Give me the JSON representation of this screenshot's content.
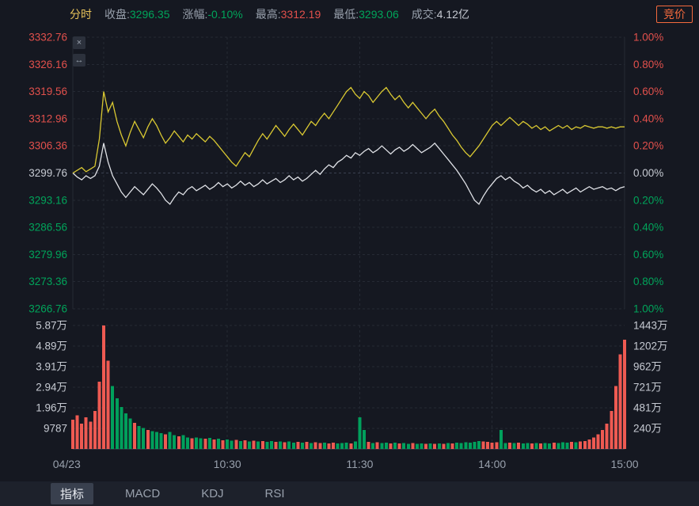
{
  "header": {
    "mode_label": "分时",
    "stats": [
      {
        "label": "收盘:",
        "value": "3296.35",
        "color": "green"
      },
      {
        "label": "涨幅:",
        "value": "-0.10%",
        "color": "green"
      },
      {
        "label": "最高:",
        "value": "3312.19",
        "color": "red"
      },
      {
        "label": "最低:",
        "value": "3293.06",
        "color": "green"
      },
      {
        "label": "成交:",
        "value": "4.12亿",
        "color": "white"
      }
    ],
    "auction_button": "竞价"
  },
  "chart_controls": {
    "close_icon": "×",
    "expand_icon": "↔"
  },
  "colors": {
    "background": "#151821",
    "red": "#e2504c",
    "green": "#00a45a",
    "neutral_text": "#c6cad2",
    "muted_text": "#98a0ac",
    "accent_orange": "#f56a3d",
    "accent_gold": "#e8c35a",
    "grid": "#252a34",
    "grid_strong": "#3a4150",
    "bar_red": "#ee5a52",
    "bar_green": "#00a05c",
    "white_line": "#dfe1e6",
    "yellow_line": "#d9c832"
  },
  "chart_data": {
    "type": "line",
    "title": "分时",
    "prev_close": 3299.76,
    "close": 3296.35,
    "high": 3312.19,
    "low": 3293.06,
    "turnover": "4.12亿",
    "pct_range": [
      -1.0,
      1.0
    ],
    "total_minutes": 250,
    "minutes_per_point": 2,
    "open_line_minute": 14,
    "price_axis_left": [
      {
        "t": "3332.76",
        "c": "red"
      },
      {
        "t": "3326.16",
        "c": "red"
      },
      {
        "t": "3319.56",
        "c": "red"
      },
      {
        "t": "3312.96",
        "c": "red"
      },
      {
        "t": "3306.36",
        "c": "red"
      },
      {
        "t": "3299.76",
        "c": "white"
      },
      {
        "t": "3293.16",
        "c": "green"
      },
      {
        "t": "3286.56",
        "c": "green"
      },
      {
        "t": "3279.96",
        "c": "green"
      },
      {
        "t": "3273.36",
        "c": "green"
      },
      {
        "t": "3266.76",
        "c": "green"
      }
    ],
    "pct_axis_right": [
      {
        "t": "1.00%",
        "c": "red"
      },
      {
        "t": "0.80%",
        "c": "red"
      },
      {
        "t": "0.60%",
        "c": "red"
      },
      {
        "t": "0.40%",
        "c": "red"
      },
      {
        "t": "0.20%",
        "c": "red"
      },
      {
        "t": "0.00%",
        "c": "white"
      },
      {
        "t": "0.20%",
        "c": "green"
      },
      {
        "t": "0.40%",
        "c": "green"
      },
      {
        "t": "0.60%",
        "c": "green"
      },
      {
        "t": "0.80%",
        "c": "green"
      },
      {
        "t": "1.00%",
        "c": "green"
      }
    ],
    "vol_axis_left": [
      "5.87万",
      "4.89万",
      "3.91万",
      "2.94万",
      "1.96万",
      "9787"
    ],
    "vol_axis_right": [
      "1443万",
      "1202万",
      "962万",
      "721万",
      "481万",
      "240万"
    ],
    "vol_grid_step": 9787,
    "x_labels": [
      {
        "t": "04/23",
        "min": 0
      },
      {
        "t": "10:30",
        "min": 70
      },
      {
        "t": "11:30",
        "min": 130
      },
      {
        "t": "14:00",
        "min": 190
      },
      {
        "t": "15:00",
        "min": 250
      }
    ],
    "series": [
      {
        "name": "price",
        "color": "#dfe1e6",
        "pct": [
          0,
          -0.03,
          -0.05,
          -0.02,
          -0.04,
          -0.02,
          0.05,
          0.22,
          0.08,
          -0.02,
          -0.08,
          -0.14,
          -0.18,
          -0.14,
          -0.1,
          -0.13,
          -0.16,
          -0.12,
          -0.08,
          -0.11,
          -0.15,
          -0.2,
          -0.23,
          -0.18,
          -0.14,
          -0.16,
          -0.12,
          -0.1,
          -0.13,
          -0.11,
          -0.09,
          -0.12,
          -0.1,
          -0.07,
          -0.1,
          -0.08,
          -0.11,
          -0.09,
          -0.06,
          -0.09,
          -0.07,
          -0.1,
          -0.08,
          -0.05,
          -0.08,
          -0.06,
          -0.04,
          -0.07,
          -0.05,
          -0.02,
          -0.05,
          -0.03,
          -0.06,
          -0.04,
          -0.01,
          0.02,
          -0.01,
          0.03,
          0.06,
          0.04,
          0.08,
          0.1,
          0.13,
          0.11,
          0.15,
          0.13,
          0.16,
          0.18,
          0.15,
          0.17,
          0.2,
          0.17,
          0.14,
          0.17,
          0.19,
          0.16,
          0.18,
          0.21,
          0.18,
          0.15,
          0.17,
          0.19,
          0.22,
          0.18,
          0.14,
          0.1,
          0.06,
          0.02,
          -0.03,
          -0.08,
          -0.14,
          -0.2,
          -0.23,
          -0.17,
          -0.12,
          -0.08,
          -0.04,
          -0.02,
          -0.05,
          -0.03,
          -0.06,
          -0.08,
          -0.11,
          -0.09,
          -0.12,
          -0.14,
          -0.12,
          -0.15,
          -0.13,
          -0.16,
          -0.14,
          -0.12,
          -0.15,
          -0.13,
          -0.11,
          -0.14,
          -0.12,
          -0.1,
          -0.12,
          -0.11,
          -0.1,
          -0.12,
          -0.11,
          -0.13,
          -0.11,
          -0.1
        ]
      },
      {
        "name": "average",
        "color": "#d9c832",
        "pct": [
          0,
          0.02,
          0.04,
          0.01,
          0.03,
          0.05,
          0.25,
          0.6,
          0.45,
          0.52,
          0.38,
          0.28,
          0.2,
          0.3,
          0.38,
          0.32,
          0.26,
          0.34,
          0.4,
          0.35,
          0.28,
          0.22,
          0.26,
          0.31,
          0.27,
          0.23,
          0.28,
          0.25,
          0.29,
          0.26,
          0.23,
          0.27,
          0.24,
          0.2,
          0.16,
          0.12,
          0.08,
          0.05,
          0.1,
          0.15,
          0.12,
          0.18,
          0.24,
          0.29,
          0.25,
          0.3,
          0.35,
          0.31,
          0.27,
          0.32,
          0.36,
          0.32,
          0.28,
          0.33,
          0.38,
          0.35,
          0.4,
          0.44,
          0.4,
          0.45,
          0.5,
          0.55,
          0.6,
          0.63,
          0.58,
          0.55,
          0.6,
          0.57,
          0.52,
          0.56,
          0.6,
          0.63,
          0.58,
          0.54,
          0.57,
          0.52,
          0.48,
          0.52,
          0.48,
          0.44,
          0.4,
          0.44,
          0.47,
          0.42,
          0.38,
          0.33,
          0.28,
          0.24,
          0.19,
          0.15,
          0.12,
          0.16,
          0.2,
          0.25,
          0.3,
          0.35,
          0.38,
          0.35,
          0.38,
          0.41,
          0.38,
          0.35,
          0.38,
          0.36,
          0.33,
          0.35,
          0.32,
          0.34,
          0.31,
          0.33,
          0.35,
          0.33,
          0.35,
          0.32,
          0.34,
          0.33,
          0.35,
          0.34,
          0.33,
          0.34,
          0.34,
          0.33,
          0.34,
          0.33,
          0.34,
          0.34
        ]
      }
    ],
    "volume": {
      "values": [
        14000,
        16000,
        12000,
        15000,
        13000,
        18000,
        32000,
        58700,
        42000,
        30000,
        24000,
        20000,
        17000,
        14500,
        12500,
        11000,
        10000,
        9000,
        8500,
        8000,
        7500,
        7000,
        8000,
        6500,
        6000,
        6500,
        5500,
        5000,
        5500,
        5000,
        4800,
        5200,
        4500,
        4800,
        4200,
        4600,
        4000,
        4400,
        3800,
        4200,
        3600,
        4000,
        3500,
        3800,
        3400,
        3700,
        3300,
        3600,
        3200,
        3500,
        3100,
        3400,
        3000,
        3300,
        2900,
        3200,
        2800,
        3100,
        2700,
        3000,
        2600,
        2800,
        3000,
        2700,
        3500,
        15000,
        9000,
        3300,
        2900,
        3200,
        2800,
        3100,
        2700,
        3000,
        2600,
        2900,
        2500,
        2800,
        2500,
        2700,
        2400,
        2600,
        2400,
        2700,
        2500,
        2800,
        2600,
        3000,
        2800,
        3200,
        3000,
        3400,
        3800,
        3600,
        3300,
        3000,
        3200,
        9000,
        2900,
        3100,
        2800,
        3000,
        2700,
        2900,
        2600,
        2800,
        2600,
        2900,
        2700,
        3000,
        2800,
        3200,
        3000,
        3400,
        3200,
        3600,
        3800,
        4500,
        5500,
        7000,
        9000,
        12000,
        18000,
        30000,
        45000,
        52000
      ],
      "colors": [
        "rrrrrrrrrggg",
        "ggrggrgggr",
        "ggrggrggr",
        "grgrggrgrg",
        "rgrggrgrgg",
        "rgrgrrgrrg",
        "ggrggg",
        "rgrggrgrgg",
        "rggrgrgrgr",
        "ggggggrrrrg",
        "grgrggrgrg",
        "grgggrgrrr",
        "rrrrrrrr"
      ]
    }
  },
  "footer": {
    "tabs": [
      {
        "label": "指标",
        "active": true
      },
      {
        "label": "MACD",
        "active": false
      },
      {
        "label": "KDJ",
        "active": false
      },
      {
        "label": "RSI",
        "active": false
      }
    ]
  }
}
